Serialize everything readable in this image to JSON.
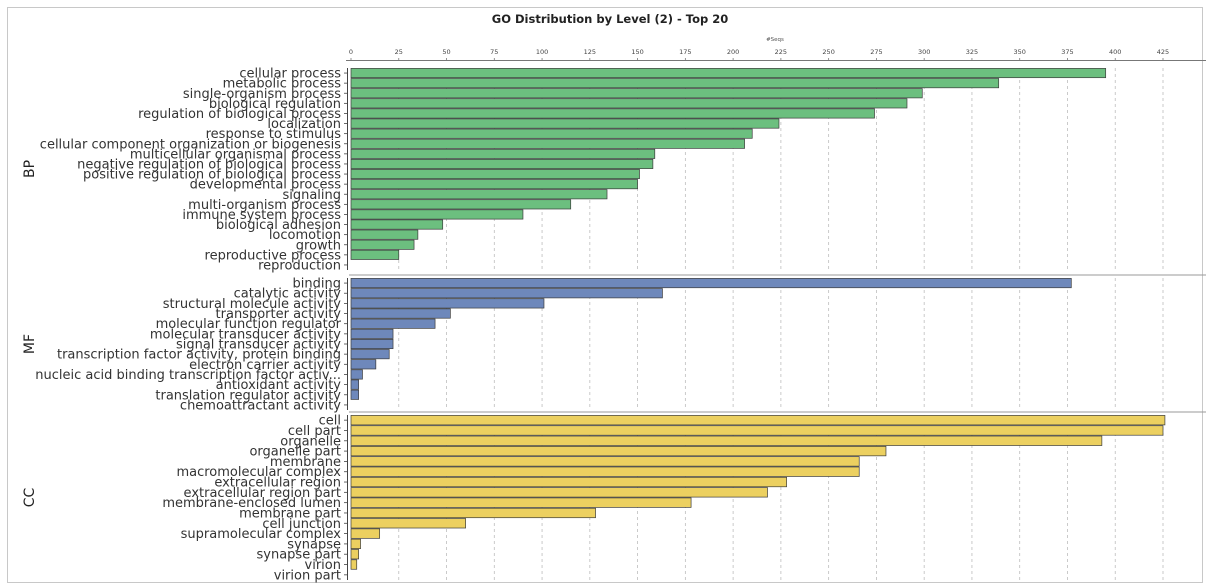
{
  "chart_data": {
    "type": "bar",
    "orientation": "horizontal",
    "title": "GO Distribution by Level (2) - Top 20",
    "xlabel": "#Seqs",
    "xlim": [
      0,
      425
    ],
    "xticks": [
      0,
      25,
      50,
      75,
      100,
      125,
      150,
      175,
      200,
      225,
      250,
      275,
      300,
      325,
      350,
      375,
      400,
      425
    ],
    "grid": true,
    "panels": [
      {
        "name": "BP",
        "color": "#6cbf7f",
        "categories": [
          "cellular process",
          "metabolic process",
          "single-organism process",
          "biological regulation",
          "regulation of biological process",
          "localization",
          "response to stimulus",
          "cellular component organization or biogenesis",
          "multicellular organismal process",
          "negative regulation of biological process",
          "positive regulation of biological process",
          "developmental process",
          "signaling",
          "multi-organism process",
          "immune system process",
          "biological adhesion",
          "locomotion",
          "growth",
          "reproductive process",
          "reproduction"
        ],
        "values": [
          395,
          339,
          299,
          291,
          274,
          224,
          210,
          206,
          159,
          158,
          151,
          150,
          134,
          115,
          90,
          48,
          35,
          33,
          25,
          0
        ]
      },
      {
        "name": "MF",
        "color": "#6e88bb",
        "categories": [
          "binding",
          "catalytic activity",
          "structural molecule activity",
          "transporter activity",
          "molecular function regulator",
          "molecular transducer activity",
          "signal transducer activity",
          "transcription factor activity, protein binding",
          "electron carrier activity",
          "nucleic acid binding transcription factor activ...",
          "antioxidant activity",
          "translation regulator activity",
          "chemoattractant activity"
        ],
        "values": [
          377,
          163,
          101,
          52,
          44,
          22,
          22,
          20,
          13,
          6,
          4,
          4,
          0
        ]
      },
      {
        "name": "CC",
        "color": "#ecd060",
        "categories": [
          "cell",
          "cell part",
          "organelle",
          "organelle part",
          "membrane",
          "macromolecular complex",
          "extracellular region",
          "extracellular region part",
          "membrane-enclosed lumen",
          "membrane part",
          "cell junction",
          "supramolecular complex",
          "synapse",
          "synapse part",
          "virion",
          "virion part"
        ],
        "values": [
          426,
          425,
          393,
          280,
          266,
          266,
          228,
          218,
          178,
          128,
          60,
          15,
          5,
          4,
          3,
          0
        ]
      }
    ]
  }
}
